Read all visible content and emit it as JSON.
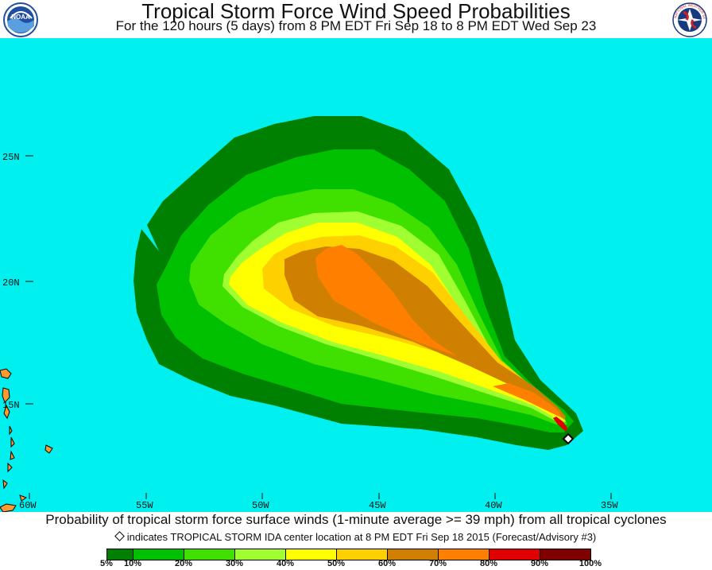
{
  "header": {
    "title": "Tropical Storm Force Wind Speed Probabilities",
    "subtitle": "For the 120 hours (5 days) from 8 PM EDT Fri Sep 18 to 8 PM EDT Wed Sep 23",
    "left_logo_text": "NOAA",
    "right_logo_text": "NATIONAL WEATHER SERVICE"
  },
  "map": {
    "ocean_color": "#00f0f0",
    "land_color": "#ff9a30",
    "lat_labels": [
      "25N",
      "20N",
      "15N"
    ],
    "lon_labels": [
      "60W",
      "55W",
      "50W",
      "45W",
      "40W",
      "35W"
    ],
    "storm_marker": "storm-center-diamond"
  },
  "footer": {
    "caption": "Probability of tropical storm force surface winds (1-minute average >= 39 mph) from all tropical cyclones",
    "note": "indicates TROPICAL STORM IDA center location at 8 PM EDT Fri Sep 18 2015 (Forecast/Advisory #3)"
  },
  "legend": {
    "colors": [
      "#008000",
      "#00c000",
      "#40e000",
      "#a0ff30",
      "#ffff00",
      "#ffd000",
      "#d08000",
      "#ff8000",
      "#e00000",
      "#800000",
      "#8000a0"
    ],
    "labels": [
      "5%",
      "10%",
      "20%",
      "30%",
      "40%",
      "50%",
      "60%",
      "70%",
      "80%",
      "90%",
      "100%"
    ]
  }
}
